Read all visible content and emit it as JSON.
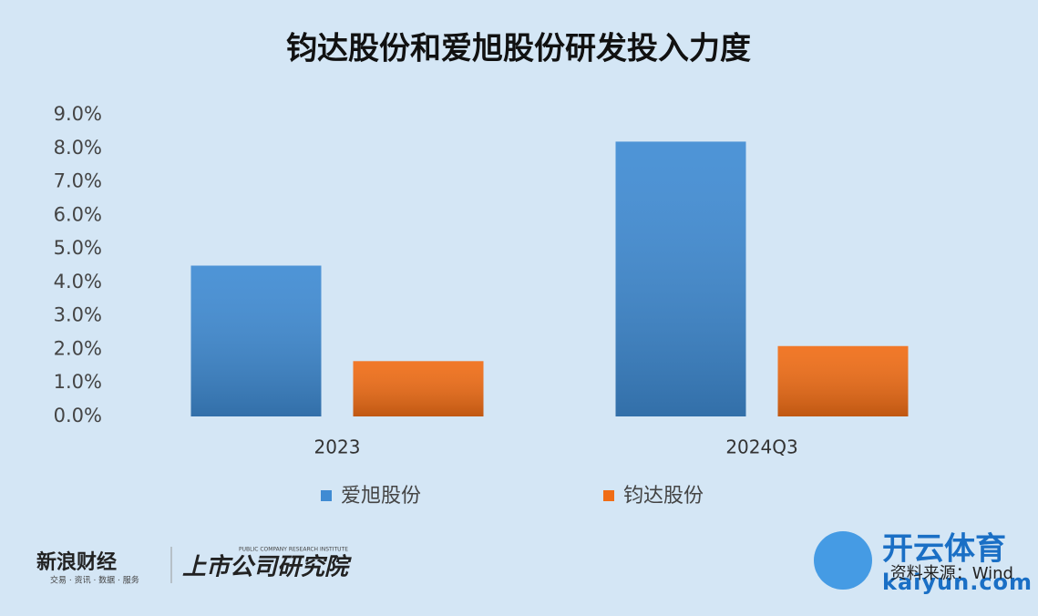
{
  "chart_data": {
    "type": "bar",
    "title": "钧达股份和爱旭股份研发投入力度",
    "categories": [
      "2023",
      "2024Q3"
    ],
    "series": [
      {
        "name": "爱旭股份",
        "color": "#3f8bd3",
        "values": [
          4.5,
          8.2
        ]
      },
      {
        "name": "钧达股份",
        "color": "#f06d16",
        "values": [
          1.65,
          2.1
        ]
      }
    ],
    "ylim": [
      0,
      9
    ],
    "yticks": [
      {
        "value": 0,
        "label": "0.0%"
      },
      {
        "value": 1,
        "label": "1.0%"
      },
      {
        "value": 2,
        "label": "2.0%"
      },
      {
        "value": 3,
        "label": "3.0%"
      },
      {
        "value": 4,
        "label": "4.0%"
      },
      {
        "value": 5,
        "label": "5.0%"
      },
      {
        "value": 6,
        "label": "6.0%"
      },
      {
        "value": 7,
        "label": "7.0%"
      },
      {
        "value": 8,
        "label": "8.0%"
      },
      {
        "value": 9,
        "label": "9.0%"
      }
    ],
    "grid": false,
    "legend": "bottom",
    "source": "资料来源：Wind"
  },
  "logos": {
    "sina": "新浪财经",
    "sina_sub": "交易 · 资讯 · 数据 · 服务",
    "institute": "上市公司研究院",
    "institute_sub": "PUBLIC COMPANY RESEARCH INSTITUTE",
    "brand": "开云体育",
    "brand_url": "kaiyun.com"
  }
}
